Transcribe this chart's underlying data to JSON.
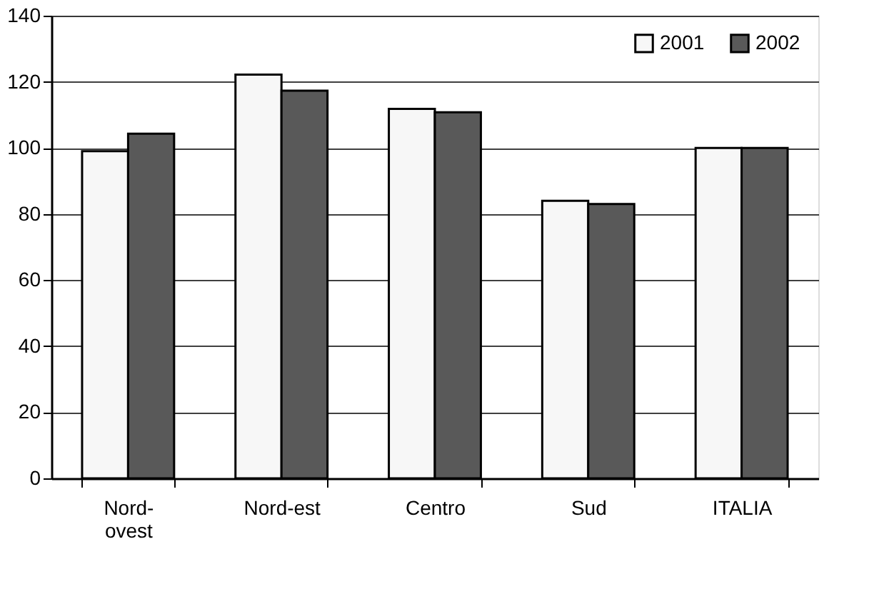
{
  "chart_data": {
    "type": "bar",
    "categories": [
      "Nord-\novest",
      "Nord-est",
      "Centro",
      "Sud",
      "ITALIA"
    ],
    "series": [
      {
        "name": "2001",
        "color": "#f7f7f7",
        "values": [
          99,
          122.2,
          111.8,
          84,
          100
        ]
      },
      {
        "name": "2002",
        "color": "#595959",
        "values": [
          104.3,
          117.3,
          110.8,
          83,
          100
        ]
      }
    ],
    "ylim": [
      0,
      140
    ],
    "yticks": [
      0,
      20,
      40,
      60,
      80,
      100,
      120,
      140
    ],
    "grid": "y",
    "legend": "top right"
  }
}
